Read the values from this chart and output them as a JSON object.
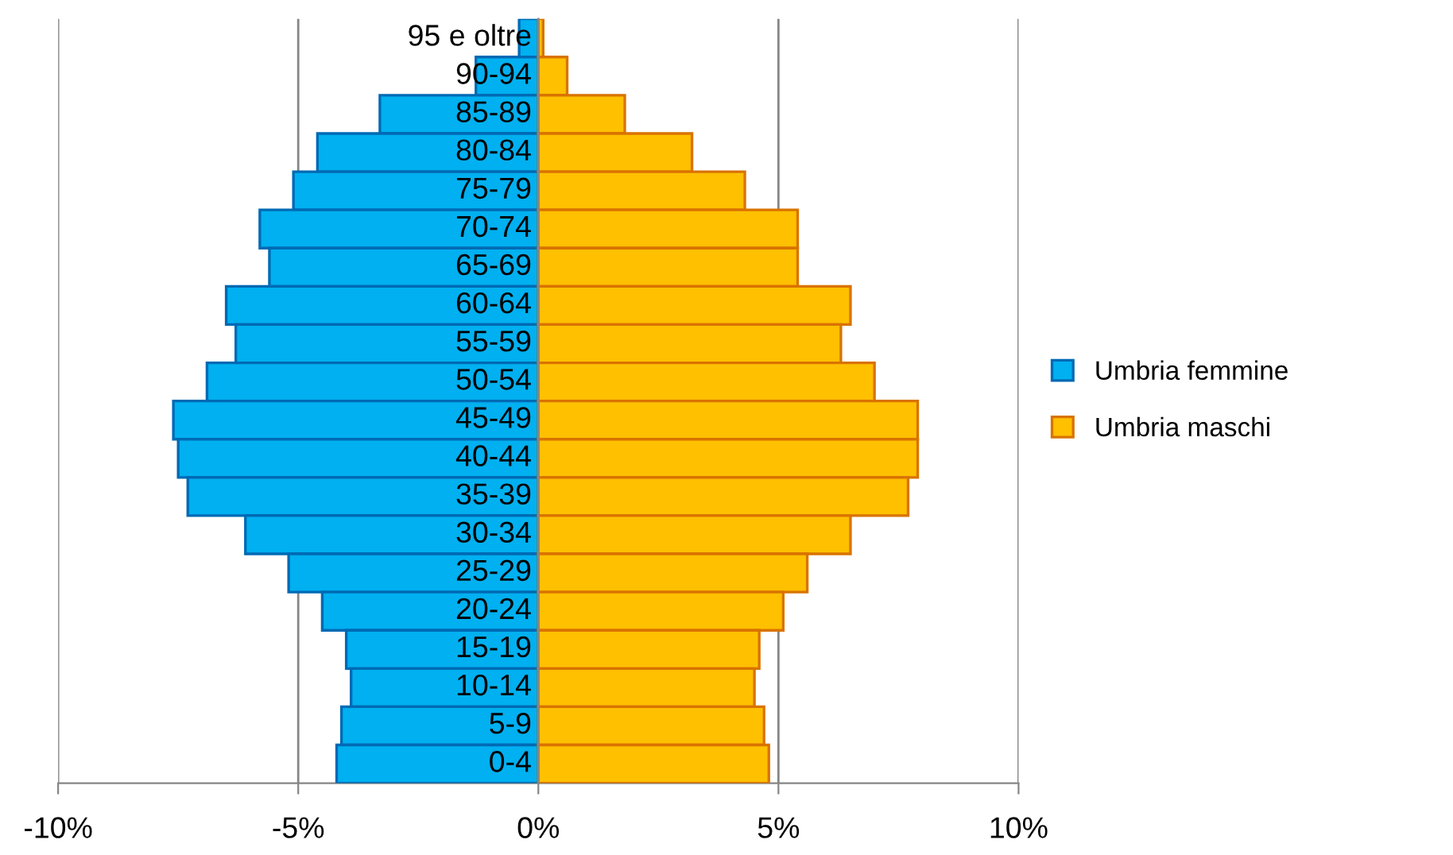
{
  "chart_data": {
    "type": "bar",
    "orientation": "horizontal",
    "categories": [
      "95 e oltre",
      "90-94",
      "85-89",
      "80-84",
      "75-79",
      "70-74",
      "65-69",
      "60-64",
      "55-59",
      "50-54",
      "45-49",
      "40-44",
      "35-39",
      "30-34",
      "25-29",
      "20-24",
      "15-19",
      "10-14",
      "5-9",
      "0-4"
    ],
    "series": [
      {
        "name": "Umbria femmine",
        "color": "#00b0f0",
        "values": [
          -0.4,
          -1.3,
          -3.3,
          -4.6,
          -5.1,
          -5.8,
          -5.6,
          -6.5,
          -6.3,
          -6.9,
          -7.6,
          -7.5,
          -7.3,
          -6.1,
          -5.2,
          -4.5,
          -4.0,
          -3.9,
          -4.1,
          -4.2
        ]
      },
      {
        "name": "Umbria maschi",
        "color": "#ffc000",
        "values": [
          0.1,
          0.6,
          1.8,
          3.2,
          4.3,
          5.4,
          5.4,
          6.5,
          6.3,
          7.0,
          7.9,
          7.9,
          7.7,
          6.5,
          5.6,
          5.1,
          4.6,
          4.5,
          4.7,
          4.8
        ]
      }
    ],
    "xlim": [
      -10,
      10
    ],
    "xticks": [
      {
        "value": -10,
        "label": "-10%"
      },
      {
        "value": -5,
        "label": "-5%"
      },
      {
        "value": 0,
        "label": "0%"
      },
      {
        "value": 5,
        "label": "5%"
      },
      {
        "value": 10,
        "label": "10%"
      }
    ],
    "grid": "x",
    "legend": "right",
    "stacked": true
  }
}
